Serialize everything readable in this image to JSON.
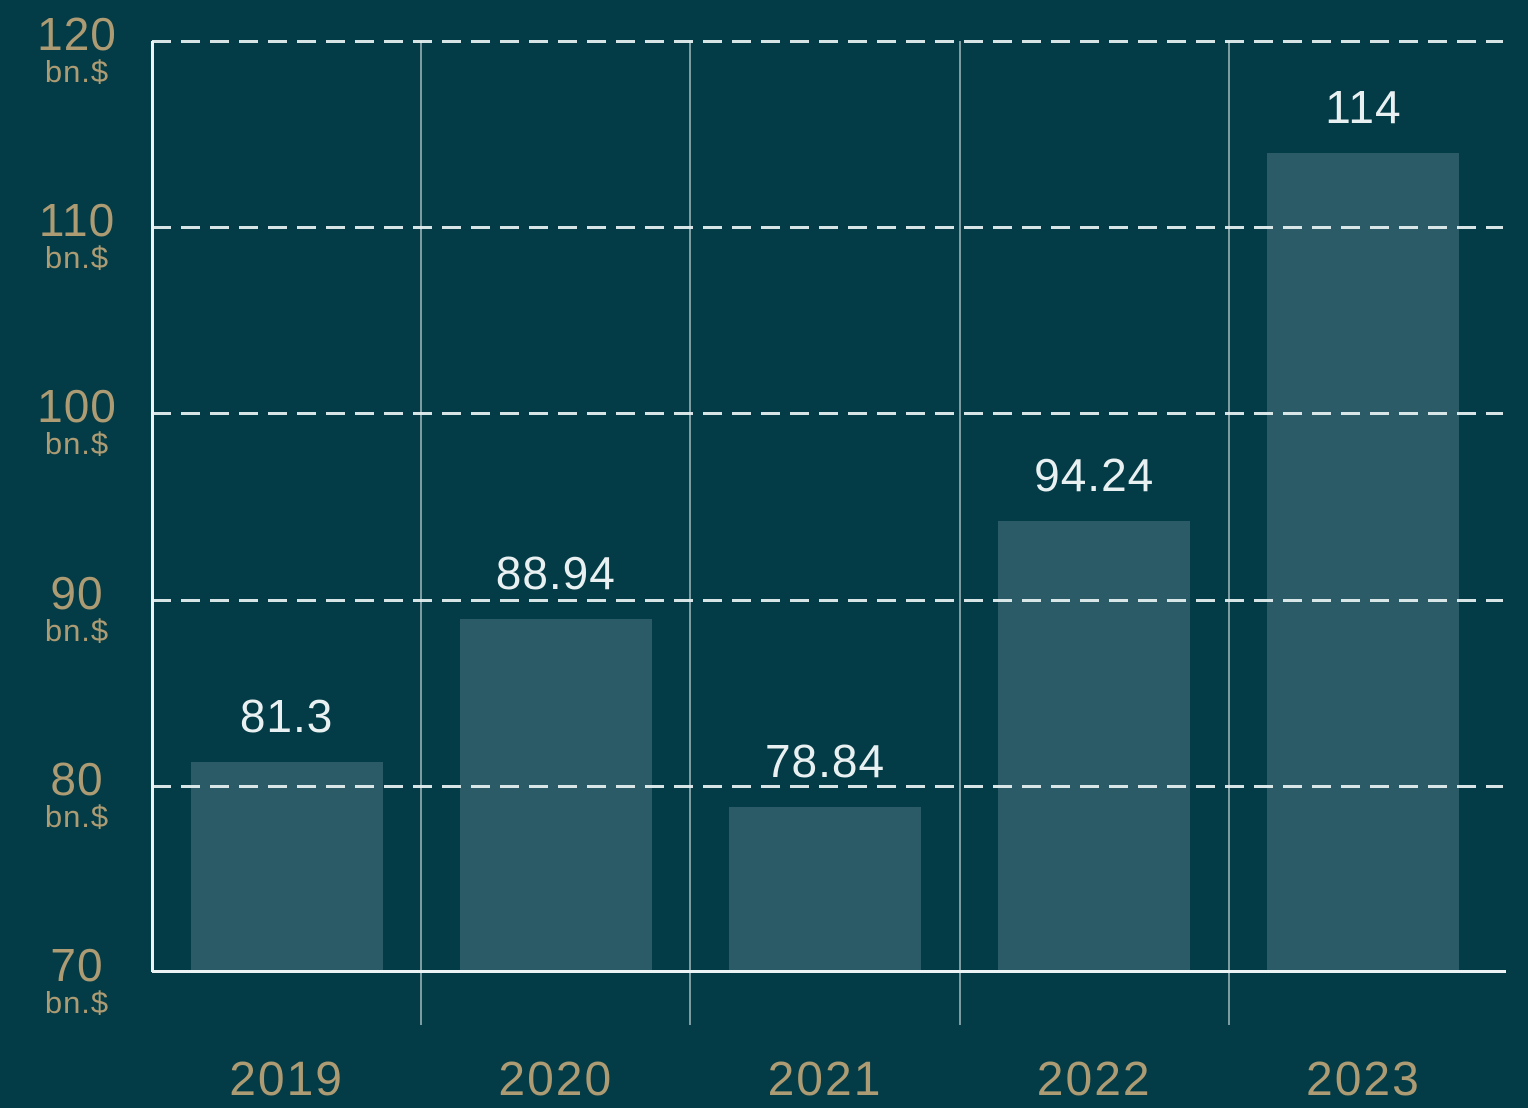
{
  "chart_data": {
    "type": "bar",
    "title": "",
    "categories": [
      "2019",
      "2020",
      "2021",
      "2022",
      "2023"
    ],
    "values": [
      81.3,
      88.94,
      78.84,
      94.24,
      114
    ],
    "value_labels": [
      "81.3",
      "88.94",
      "78.84",
      "94.24",
      "114"
    ],
    "unit": "bn.$",
    "ylabel": "bn.$",
    "yticks": [
      120,
      110,
      100,
      90,
      80,
      70
    ],
    "ylim": [
      70,
      120
    ],
    "grid": "dashed horizontal gridlines at each tick, solid vertical separators between year columns",
    "legend": "none",
    "colors": {
      "background": "#033B46",
      "bar": "#2B5B66",
      "axis_tick_label": "#AC9B73",
      "year_label": "#AC9B73",
      "value_label": "#E8F0F1",
      "gridline_dashed": "#E2EDEE",
      "axis_line": "#EBF3F4"
    }
  }
}
